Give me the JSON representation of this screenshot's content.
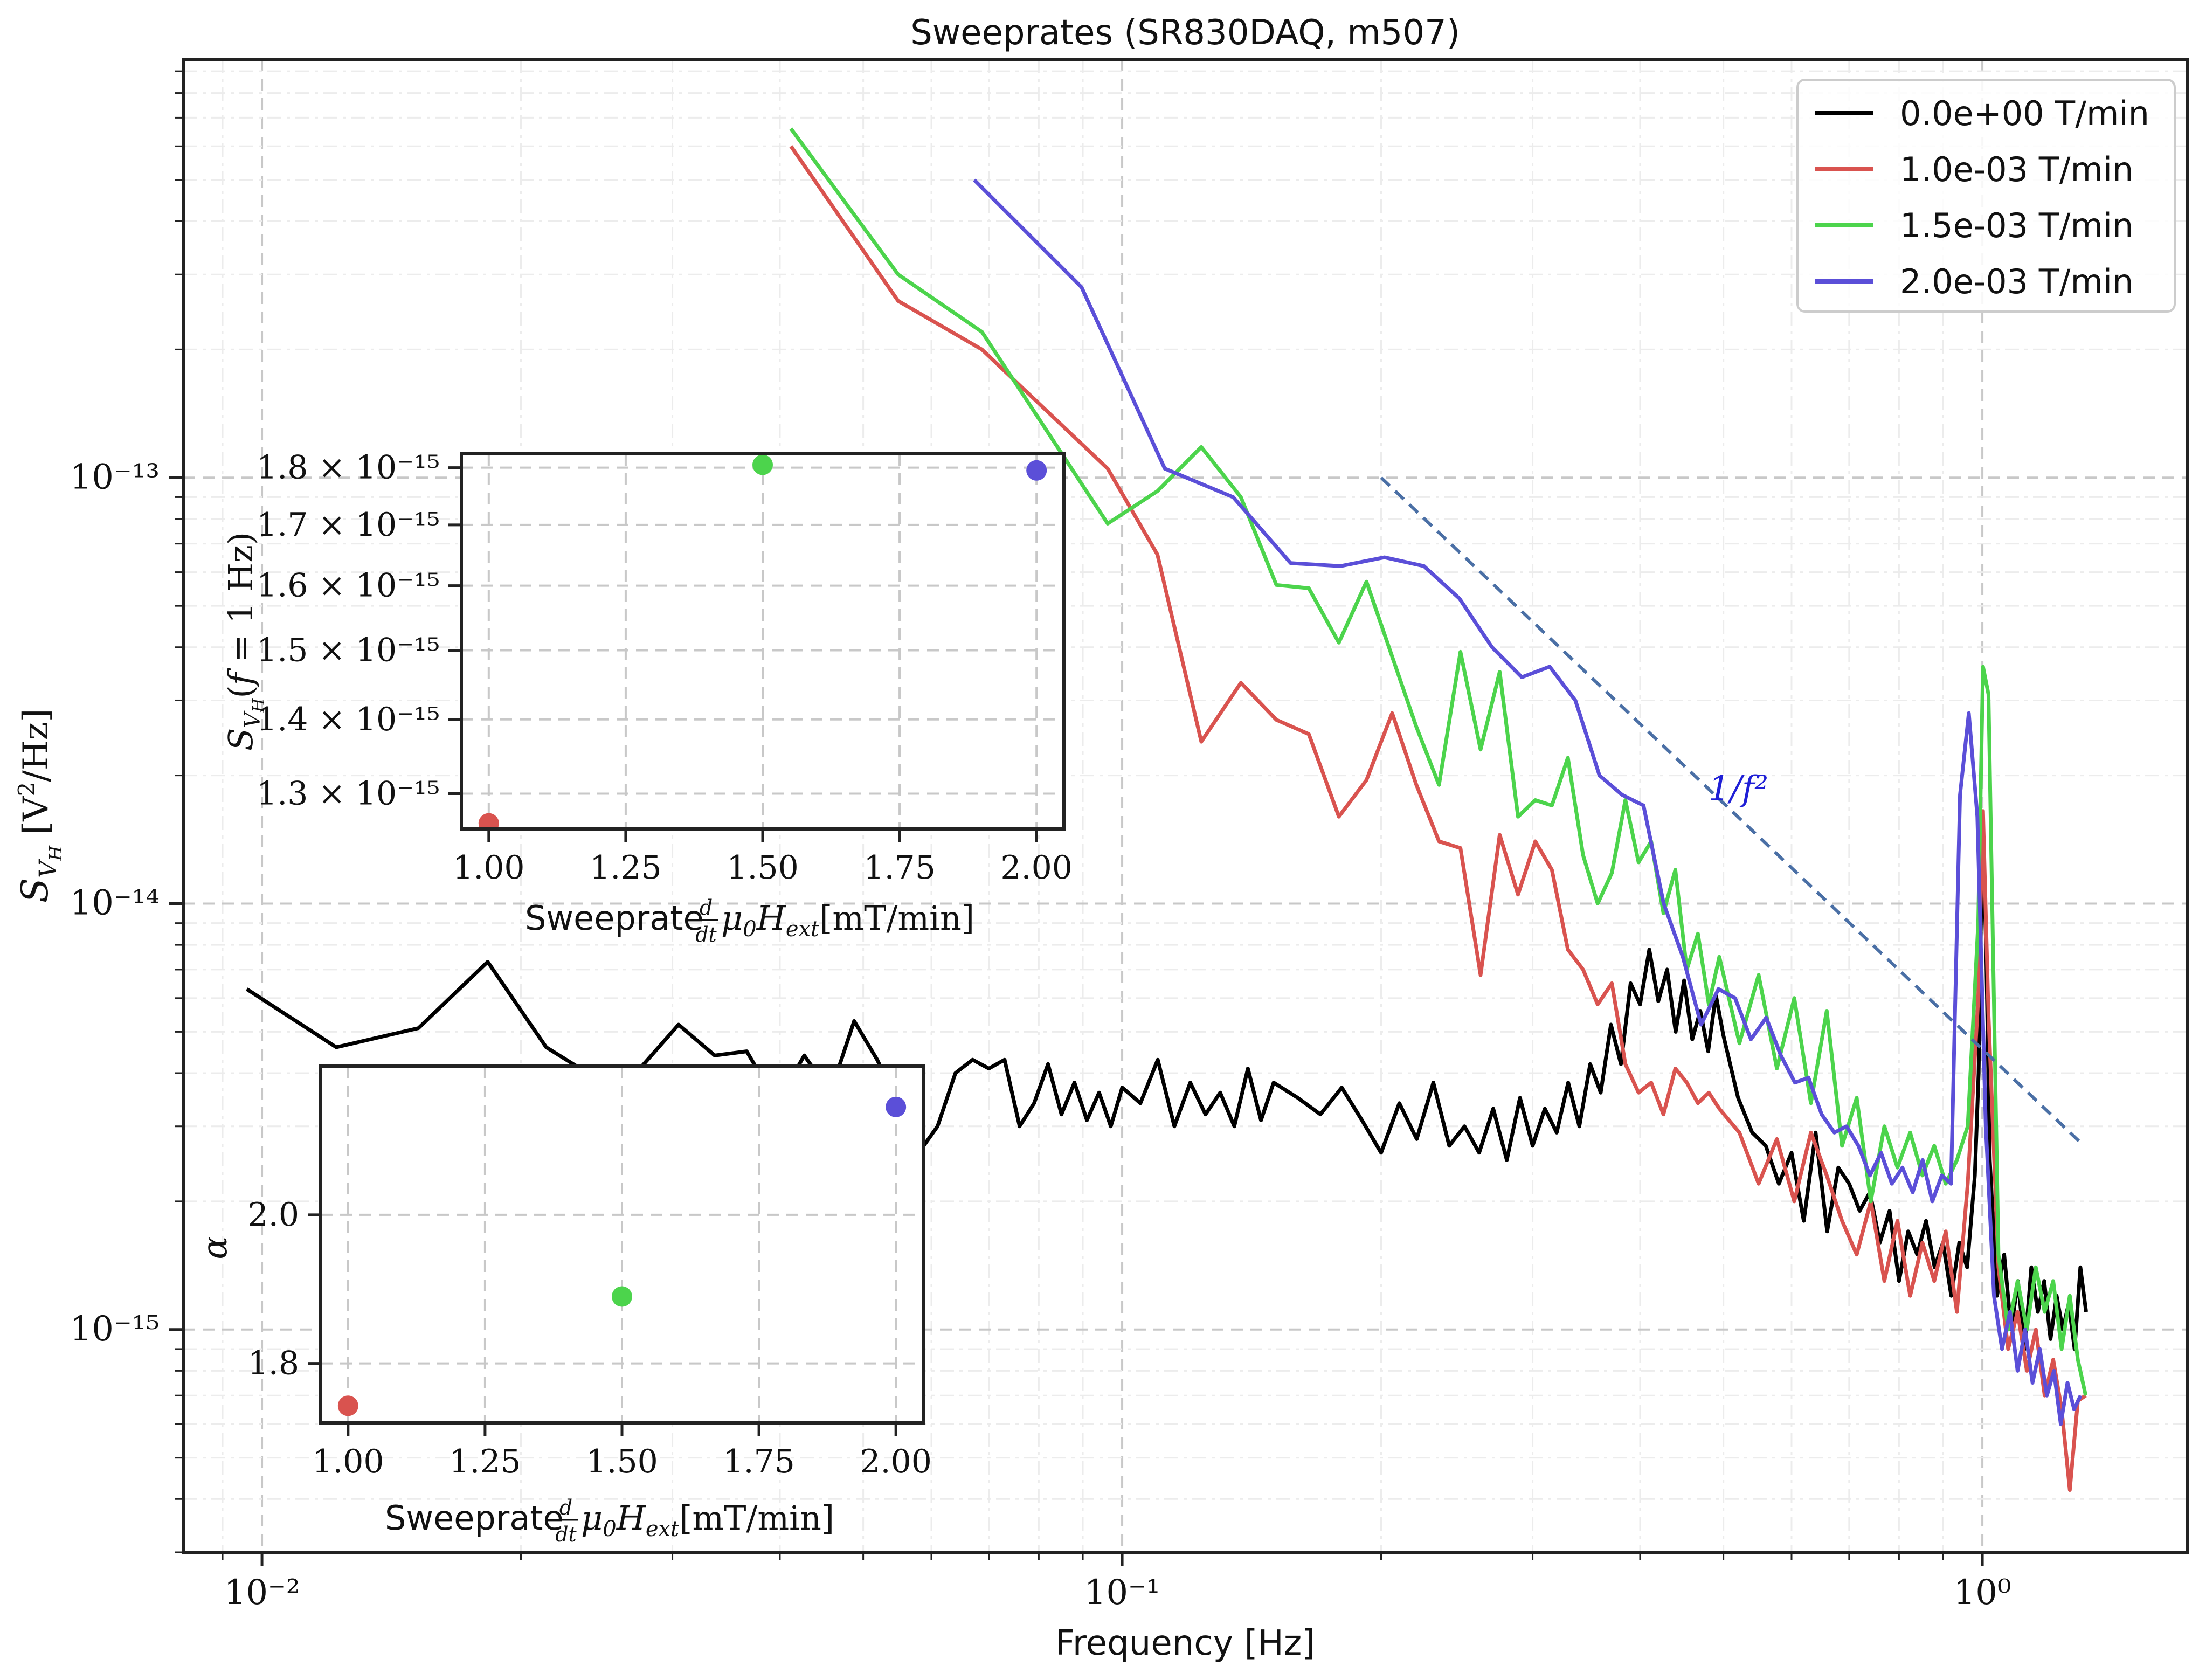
{
  "chart_data": [
    {
      "type": "line",
      "title": "Sweeprates (SR830DAQ, m507)",
      "xlabel": "Frequency [Hz]",
      "ylabel": "S_{V_H} [V²/Hz]",
      "xscale": "log",
      "yscale": "log",
      "xlim": [
        0.0081,
        1.73
      ],
      "ylim": [
        3e-16,
        9.6e-13
      ],
      "xticks": [
        {
          "value": 0.01,
          "label": "10⁻²"
        },
        {
          "value": 0.1,
          "label": "10⁻¹"
        },
        {
          "value": 1,
          "label": "10⁰"
        }
      ],
      "yticks": [
        {
          "value": 1e-15,
          "label": "10⁻¹⁵"
        },
        {
          "value": 1e-14,
          "label": "10⁻¹⁴"
        },
        {
          "value": 1e-13,
          "label": "10⁻¹³"
        }
      ],
      "grid": true,
      "legend_position": "top-right",
      "series": [
        {
          "name": "0.0e+00 T/min",
          "color": "#000000",
          "x": [
            0.0096,
            0.0122,
            0.0152,
            0.0183,
            0.0214,
            0.0244,
            0.0275,
            0.0305,
            0.0336,
            0.0366,
            0.0397,
            0.0427,
            0.0458,
            0.0488,
            0.0519,
            0.0549,
            0.058,
            0.061,
            0.064,
            0.067,
            0.07,
            0.073,
            0.076,
            0.079,
            0.082,
            0.085,
            0.088,
            0.091,
            0.094,
            0.097,
            0.1,
            0.105,
            0.11,
            0.115,
            0.12,
            0.125,
            0.13,
            0.135,
            0.14,
            0.145,
            0.15,
            0.16,
            0.17,
            0.18,
            0.19,
            0.2,
            0.21,
            0.22,
            0.23,
            0.24,
            0.25,
            0.26,
            0.27,
            0.28,
            0.29,
            0.3,
            0.31,
            0.32,
            0.33,
            0.34,
            0.35,
            0.36,
            0.37,
            0.38,
            0.39,
            0.4,
            0.41,
            0.42,
            0.43,
            0.44,
            0.45,
            0.46,
            0.47,
            0.48,
            0.49,
            0.5,
            0.52,
            0.54,
            0.56,
            0.58,
            0.6,
            0.62,
            0.64,
            0.66,
            0.68,
            0.7,
            0.72,
            0.74,
            0.76,
            0.78,
            0.8,
            0.82,
            0.84,
            0.86,
            0.88,
            0.9,
            0.92,
            0.94,
            0.96,
            0.98,
            0.99,
            1.0,
            1.01,
            1.02,
            1.04,
            1.06,
            1.08,
            1.1,
            1.12,
            1.14,
            1.16,
            1.18,
            1.2,
            1.22,
            1.24,
            1.26,
            1.28,
            1.3,
            1.32
          ],
          "y": [
            6.3e-15,
            4.6e-15,
            5.1e-15,
            7.3e-15,
            4.6e-15,
            3.9e-15,
            4.1e-15,
            5.2e-15,
            4.4e-15,
            4.5e-15,
            3.4e-15,
            4.4e-15,
            3.6e-15,
            5.3e-15,
            4.3e-15,
            3.4e-15,
            2.6e-15,
            3e-15,
            4e-15,
            4.3e-15,
            4.1e-15,
            4.3e-15,
            3e-15,
            3.4e-15,
            4.2e-15,
            3.2e-15,
            3.8e-15,
            3.1e-15,
            3.6e-15,
            3e-15,
            3.7e-15,
            3.4e-15,
            4.3e-15,
            3e-15,
            3.8e-15,
            3.2e-15,
            3.6e-15,
            3e-15,
            4.1e-15,
            3.1e-15,
            3.8e-15,
            3.5e-15,
            3.2e-15,
            3.7e-15,
            3.1e-15,
            2.6e-15,
            3.4e-15,
            2.8e-15,
            3.8e-15,
            2.7e-15,
            3e-15,
            2.6e-15,
            3.3e-15,
            2.5e-15,
            3.5e-15,
            2.7e-15,
            3.3e-15,
            2.9e-15,
            3.8e-15,
            3e-15,
            4.2e-15,
            3.6e-15,
            5.2e-15,
            4.2e-15,
            6.5e-15,
            5.8e-15,
            7.8e-15,
            5.9e-15,
            7e-15,
            5e-15,
            6.6e-15,
            4.8e-15,
            5.6e-15,
            4.5e-15,
            6.1e-15,
            4.9e-15,
            3.5e-15,
            2.9e-15,
            2.7e-15,
            2.2e-15,
            2.6e-15,
            1.8e-15,
            2.9e-15,
            1.7e-15,
            2.4e-15,
            2.2e-15,
            1.9e-15,
            2.1e-15,
            1.6e-15,
            1.9e-15,
            1.3e-15,
            1.7e-15,
            1.5e-15,
            1.8e-15,
            1.4e-15,
            1.6e-15,
            1.2e-15,
            1.6e-15,
            1.4e-15,
            2.3e-15,
            4e-15,
            1.55e-14,
            8e-15,
            2.5e-15,
            1.2e-15,
            1.5e-15,
            1e-15,
            1.3e-15,
            9e-16,
            1.4e-15,
            1.1e-15,
            1.3e-15,
            9.5e-16,
            1.2e-15,
            1e-15,
            1.15e-15,
            9e-16,
            1.4e-15,
            1.1e-15
          ]
        },
        {
          "name": "1.0e-03 T/min",
          "color": "#d9534f",
          "x": [
            0.0412,
            0.0549,
            0.0687,
            0.0962,
            0.1099,
            0.1236,
            0.1374,
            0.1511,
            0.1648,
            0.1786,
            0.1923,
            0.206,
            0.2198,
            0.2335,
            0.2473,
            0.261,
            0.2747,
            0.2885,
            0.3022,
            0.3159,
            0.3297,
            0.3434,
            0.3571,
            0.3709,
            0.3846,
            0.3984,
            0.4121,
            0.4258,
            0.4396,
            0.4533,
            0.467,
            0.4808,
            0.4945,
            0.5219,
            0.5494,
            0.5769,
            0.6044,
            0.6319,
            0.6593,
            0.6868,
            0.7143,
            0.7418,
            0.7692,
            0.7967,
            0.8242,
            0.8517,
            0.8791,
            0.9066,
            0.9341,
            0.9615,
            0.989,
            1.0016,
            1.0165,
            1.044,
            1.0714,
            1.0989,
            1.1264,
            1.1538,
            1.1813,
            1.2088,
            1.2363,
            1.2637,
            1.2912,
            1.3187
          ],
          "y": [
            6e-13,
            2.6e-13,
            2e-13,
            1.05e-13,
            6.6e-14,
            2.4e-14,
            3.3e-14,
            2.7e-14,
            2.5e-14,
            1.6e-14,
            1.95e-14,
            2.8e-14,
            1.9e-14,
            1.4e-14,
            1.35e-14,
            6.8e-15,
            1.45e-14,
            1.05e-14,
            1.4e-14,
            1.2e-14,
            7.8e-15,
            7e-15,
            5.8e-15,
            6.5e-15,
            4.2e-15,
            3.6e-15,
            3.8e-15,
            3.2e-15,
            4.1e-15,
            3.8e-15,
            3.4e-15,
            3.6e-15,
            3.3e-15,
            2.9e-15,
            2.2e-15,
            2.8e-15,
            2e-15,
            2.9e-15,
            2.3e-15,
            1.8e-15,
            1.5e-15,
            2e-15,
            1.3e-15,
            1.8e-15,
            1.2e-15,
            1.6e-15,
            1.3e-15,
            1.7e-15,
            1.1e-15,
            2.2e-15,
            6e-15,
            1.65e-14,
            5.5e-15,
            1.4e-15,
            9e-16,
            1.1e-15,
            8e-16,
            1e-15,
            7e-16,
            8.5e-16,
            6.5e-16,
            4.2e-16,
            6.8e-16,
            7e-16
          ]
        },
        {
          "name": "1.5e-03 T/min",
          "color": "#4cd44c",
          "x": [
            0.0412,
            0.0549,
            0.0687,
            0.0962,
            0.1099,
            0.1236,
            0.1374,
            0.1511,
            0.1648,
            0.1786,
            0.1923,
            0.206,
            0.2198,
            0.2335,
            0.2473,
            0.261,
            0.2747,
            0.2885,
            0.3022,
            0.3159,
            0.3297,
            0.3434,
            0.3571,
            0.3709,
            0.3846,
            0.3984,
            0.4121,
            0.4258,
            0.4396,
            0.4533,
            0.467,
            0.4808,
            0.4945,
            0.5219,
            0.5494,
            0.5769,
            0.6044,
            0.6319,
            0.6593,
            0.6868,
            0.7143,
            0.7418,
            0.7692,
            0.7967,
            0.8242,
            0.8517,
            0.8791,
            0.9066,
            0.9341,
            0.9615,
            0.989,
            1.0016,
            1.0165,
            1.044,
            1.0714,
            1.0989,
            1.1264,
            1.1538,
            1.1813,
            1.2088,
            1.2363,
            1.2637,
            1.2912,
            1.3187
          ],
          "y": [
            6.6e-13,
            3e-13,
            2.2e-13,
            7.8e-14,
            9.3e-14,
            1.18e-13,
            9e-14,
            5.6e-14,
            5.5e-14,
            4.1e-14,
            5.7e-14,
            3.8e-14,
            2.6e-14,
            1.9e-14,
            3.9e-14,
            2.3e-14,
            3.5e-14,
            1.6e-14,
            1.75e-14,
            1.7e-14,
            2.2e-14,
            1.3e-14,
            1e-14,
            1.18e-14,
            1.75e-14,
            1.25e-14,
            1.4e-14,
            9.5e-15,
            1.2e-14,
            7e-15,
            8.5e-15,
            5.8e-15,
            7.5e-15,
            4.7e-15,
            6.8e-15,
            4.1e-15,
            6e-15,
            3.4e-15,
            5.6e-15,
            2.7e-15,
            3.5e-15,
            2e-15,
            3e-15,
            2.4e-15,
            2.9e-15,
            2.3e-15,
            2.7e-15,
            2.2e-15,
            2.5e-15,
            3e-15,
            9e-15,
            3.6e-14,
            3.1e-14,
            1.5e-15,
            1e-15,
            1.3e-15,
            1e-15,
            1.4e-15,
            1.1e-15,
            1.3e-15,
            9e-16,
            1.2e-15,
            8.5e-16,
            7e-16
          ]
        },
        {
          "name": "2.0e-03 T/min",
          "color": "#5b4fd8",
          "x": [
            0.0673,
            0.0897,
            0.1121,
            0.1346,
            0.157,
            0.1794,
            0.2018,
            0.2243,
            0.2467,
            0.2691,
            0.2915,
            0.314,
            0.3364,
            0.3588,
            0.3813,
            0.4037,
            0.4261,
            0.4485,
            0.471,
            0.4934,
            0.5158,
            0.5382,
            0.5607,
            0.5831,
            0.6055,
            0.6279,
            0.6504,
            0.6728,
            0.6952,
            0.7176,
            0.7401,
            0.7625,
            0.7849,
            0.8073,
            0.8298,
            0.8522,
            0.8746,
            0.897,
            0.9195,
            0.9419,
            0.9643,
            0.9867,
            1.0092,
            1.0316,
            1.054,
            1.0765,
            1.0989,
            1.1213,
            1.1437,
            1.1662,
            1.1886,
            1.211,
            1.2334,
            1.2559,
            1.2783,
            1.3007
          ],
          "y": [
            5e-13,
            2.8e-13,
            1.05e-13,
            9e-14,
            6.3e-14,
            6.2e-14,
            6.5e-14,
            6.2e-14,
            5.2e-14,
            4e-14,
            3.4e-14,
            3.6e-14,
            3e-14,
            2e-14,
            1.8e-14,
            1.7e-14,
            1e-14,
            7.5e-15,
            5.2e-15,
            6.3e-15,
            6e-15,
            4.8e-15,
            5.4e-15,
            4.4e-15,
            3.8e-15,
            3.9e-15,
            3.2e-15,
            2.9e-15,
            3e-15,
            2.7e-15,
            2.3e-15,
            2.6e-15,
            2.2e-15,
            2.4e-15,
            2.1e-15,
            2.5e-15,
            2e-15,
            2.3e-15,
            2.2e-15,
            1.8e-14,
            2.8e-14,
            1.6e-14,
            3e-15,
            1.2e-15,
            9e-16,
            1.1e-15,
            8e-16,
            1e-15,
            7.5e-16,
            9e-16,
            7e-16,
            8e-16,
            6e-16,
            7.5e-16,
            6.5e-16,
            7e-16
          ]
        }
      ],
      "annotations": [
        {
          "text": "1/f²",
          "x": 0.48,
          "y": 1.75e-14,
          "color": "#1f1fd6"
        }
      ],
      "reference_line": {
        "type": "power_law",
        "exponent": -2,
        "x": [
          0.2,
          1.3
        ],
        "y": [
          1e-13,
          2.75e-15
        ],
        "color": "#4a6fa5",
        "style": "dashed"
      }
    },
    {
      "type": "scatter",
      "xlabel": "Sweeprate d/dt μ0Hext [mT/min]",
      "ylabel": "S_{V_H}(f = 1 Hz)",
      "xlim": [
        0.95,
        2.05
      ],
      "ylim": [
        1.255e-15,
        1.825e-15
      ],
      "yscale": "log",
      "xticks": [
        "1.00",
        "1.25",
        "1.50",
        "1.75",
        "2.00"
      ],
      "yticks": [
        {
          "value": 1.3e-15,
          "label": "1.3 × 10⁻¹⁵"
        },
        {
          "value": 1.4e-15,
          "label": "1.4 × 10⁻¹⁵"
        },
        {
          "value": 1.5e-15,
          "label": "1.5 × 10⁻¹⁵"
        },
        {
          "value": 1.6e-15,
          "label": "1.6 × 10⁻¹⁵"
        },
        {
          "value": 1.7e-15,
          "label": "1.7 × 10⁻¹⁵"
        },
        {
          "value": 1.8e-15,
          "label": "1.8 × 10⁻¹⁵"
        }
      ],
      "grid": true,
      "points": [
        {
          "x": 1.0,
          "y": 1.262e-15,
          "color": "#d9534f"
        },
        {
          "x": 1.5,
          "y": 1.805e-15,
          "color": "#4cd44c"
        },
        {
          "x": 2.0,
          "y": 1.795e-15,
          "color": "#5b4fd8"
        }
      ]
    },
    {
      "type": "scatter",
      "xlabel": "Sweeprate d/dt μ0Hext [mT/min]",
      "ylabel": "α",
      "xlim": [
        0.95,
        2.05
      ],
      "ylim": [
        1.72,
        2.2
      ],
      "xticks": [
        "1.00",
        "1.25",
        "1.50",
        "1.75",
        "2.00"
      ],
      "yticks": [
        "1.8",
        "2.0"
      ],
      "grid": true,
      "points": [
        {
          "x": 1.0,
          "y": 1.743,
          "color": "#d9534f"
        },
        {
          "x": 1.5,
          "y": 1.89,
          "color": "#4cd44c"
        },
        {
          "x": 2.0,
          "y": 2.145,
          "color": "#5b4fd8"
        }
      ]
    }
  ]
}
